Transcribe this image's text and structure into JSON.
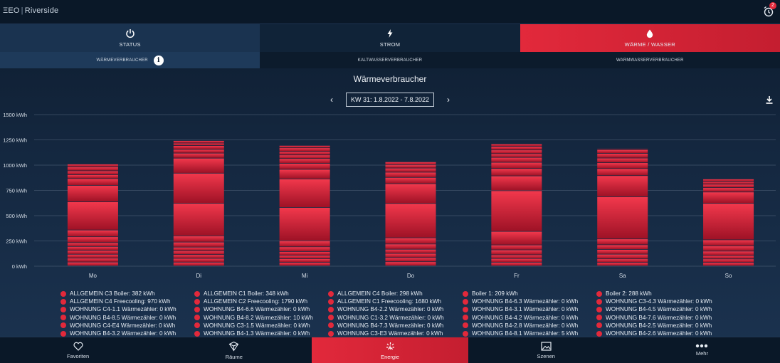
{
  "app": {
    "logo": "ΞEO",
    "site": "Riverside",
    "alarm_count": "2"
  },
  "tabs": [
    {
      "label": "STATUS",
      "icon": "power-icon"
    },
    {
      "label": "STROM",
      "icon": "bolt-icon"
    },
    {
      "label": "WÄRME / WASSER",
      "icon": "drop-icon"
    }
  ],
  "subtabs": [
    {
      "label": "WÄRMEVERBRAUCHER"
    },
    {
      "label": "KALTWASSERVERBRAUCHER"
    },
    {
      "label": "WARMWASSERVERBRAUCHER"
    }
  ],
  "title": "Wärmeverbraucher",
  "week_label": "KW 31: 1.8.2022 - 7.8.2022",
  "chart_data": {
    "type": "bar",
    "stacked": true,
    "categories": [
      "Mo",
      "Di",
      "Mi",
      "Do",
      "Fr",
      "Sa",
      "So"
    ],
    "totals": [
      960,
      1240,
      1180,
      1030,
      1220,
      1160,
      860
    ],
    "segment_splits": [
      [
        0.04,
        0.04,
        0.04,
        0.04,
        0.04,
        0.04,
        0.06,
        0.07,
        0.29,
        0.17,
        0.07,
        0.04,
        0.04,
        0.04,
        0.03
      ],
      [
        0.03,
        0.03,
        0.03,
        0.03,
        0.03,
        0.04,
        0.05,
        0.26,
        0.24,
        0.12,
        0.04,
        0.03,
        0.03,
        0.02,
        0.02
      ],
      [
        0.03,
        0.03,
        0.03,
        0.03,
        0.04,
        0.05,
        0.28,
        0.24,
        0.08,
        0.05,
        0.04,
        0.03,
        0.03,
        0.03,
        0.02
      ],
      [
        0.04,
        0.04,
        0.04,
        0.04,
        0.05,
        0.06,
        0.33,
        0.19,
        0.06,
        0.05,
        0.04,
        0.03,
        0.03,
        0.0,
        0.0
      ],
      [
        0.03,
        0.03,
        0.03,
        0.04,
        0.04,
        0.11,
        0.33,
        0.12,
        0.06,
        0.05,
        0.04,
        0.03,
        0.03,
        0.03,
        0.02
      ],
      [
        0.03,
        0.03,
        0.04,
        0.04,
        0.04,
        0.05,
        0.36,
        0.18,
        0.06,
        0.05,
        0.04,
        0.04,
        0.03,
        0.01,
        0.0
      ],
      [
        0.04,
        0.04,
        0.04,
        0.05,
        0.06,
        0.07,
        0.42,
        0.13,
        0.05,
        0.04,
        0.03,
        0.03,
        0.0,
        0.0,
        0.0
      ]
    ],
    "ylim": [
      0,
      1500
    ],
    "yticks": [
      "0 kWh",
      "250 kWh",
      "500 kWh",
      "750 kWh",
      "1000 kWh",
      "1250 kWh",
      "1500 kWh"
    ],
    "ytick_values": [
      0,
      250,
      500,
      750,
      1000,
      1250,
      1500
    ],
    "grid": true,
    "bar_color_light": "#f0283e",
    "bar_color_dark": "#a81328"
  },
  "legend": [
    [
      "ALLGEMEIN C3 Boiler: 382 kWh",
      "ALLGEMEIN C4 Freecooling: 970 kWh",
      "WOHNUNG C4-1.1 Wärmezähler: 0 kWh",
      "WOHNUNG B4-8.5 Wärmezähler: 0 kWh",
      "WOHNUNG C4-E4 Wärmezähler: 0 kWh",
      "WOHNUNG B4-3.2 Wärmezähler: 0 kWh"
    ],
    [
      "ALLGEMEIN C1 Boiler: 348 kWh",
      "ALLGEMEIN C2 Freecooling: 1790 kWh",
      "WOHNUNG B4-6.6 Wärmezähler: 0 kWh",
      "WOHNUNG B4-8.2 Wärmezähler: 10 kWh",
      "WOHNUNG C3-1.5 Wärmezähler: 0 kWh",
      "WOHNUNG B4-1.3 Wärmezähler: 0 kWh"
    ],
    [
      "ALLGEMEIN C4 Boiler: 298 kWh",
      "ALLGEMEIN C1 Freecooling: 1680 kWh",
      "WOHNUNG B4-2.2 Wärmezähler: 0 kWh",
      "WOHNUNG C1-3.2 Wärmezähler: 0 kWh",
      "WOHNUNG B4-7.3 Wärmezähler: 0 kWh",
      "WOHNUNG C3-E3 Wärmezähler: 0 kWh"
    ],
    [
      "Boiler 1: 209 kWh",
      "WOHNUNG B4-6.3 Wärmezähler: 0 kWh",
      "WOHNUNG B4-3.1 Wärmezähler: 0 kWh",
      "WOHNUNG B4-4.2 Wärmezähler: 0 kWh",
      "WOHNUNG B4-2.8 Wärmezähler: 0 kWh",
      "WOHNUNG B4-8.1 Wärmezähler: 5 kWh"
    ],
    [
      "Boiler 2: 288 kWh",
      "WOHNUNG C3-4.3 Wärmezähler: 0 kWh",
      "WOHNUNG B4-4.5 Wärmezähler: 0 kWh",
      "WOHNUNG B4-7.6 Wärmezähler: 0 kWh",
      "WOHNUNG B4-2.5 Wärmezähler: 0 kWh",
      "WOHNUNG B4-2.6 Wärmezähler: 0 kWh"
    ]
  ],
  "bottom_nav": [
    {
      "label": "Favoriten",
      "icon": "heart-icon"
    },
    {
      "label": "Räume",
      "icon": "cube-icon"
    },
    {
      "label": "Energie",
      "icon": "energy-icon"
    },
    {
      "label": "Szenen",
      "icon": "image-icon"
    },
    {
      "label": "Mehr",
      "icon": "more-icon"
    }
  ]
}
